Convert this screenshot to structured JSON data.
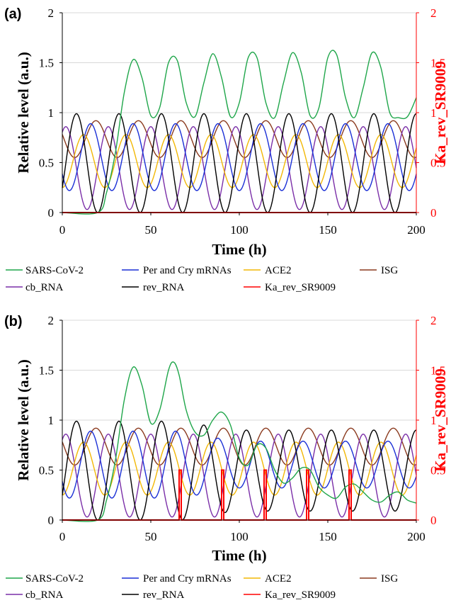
{
  "figure": {
    "panels": [
      "(a)",
      "(b)"
    ],
    "xlabel": "Time (h)",
    "ylabel": "Relative level (a.u.)",
    "y2label": "Ka_rev_SR9009"
  },
  "colors": {
    "SARS-CoV-2": "#1fa64a",
    "Per and Cry mRNAs": "#1a2fd6",
    "ACE2": "#f2b705",
    "ISG": "#8b3a1e",
    "cb_RNA": "#7a2ea8",
    "rev_RNA": "#000000",
    "Ka_rev_SR9009": "#ff0000",
    "right_axis": "#ff0000",
    "grid": "#d9d9d9"
  },
  "legend": [
    "SARS-CoV-2",
    "Per and Cry mRNAs",
    "ACE2",
    "ISG",
    "cb_RNA",
    "rev_RNA",
    "Ka_rev_SR9009"
  ],
  "chart_data": [
    {
      "type": "line",
      "panel": "(a)",
      "title": "",
      "xlabel": "Time (h)",
      "ylabel": "Relative level (a.u.)",
      "y2label": "Ka_rev_SR9009",
      "xlim": [
        0,
        200
      ],
      "ylim": [
        0,
        2
      ],
      "y2lim": [
        0,
        2
      ],
      "xticks": [
        0,
        50,
        100,
        150,
        200
      ],
      "yticks": [
        0,
        0.5,
        1,
        1.5,
        2
      ],
      "grid": true,
      "legend_position": "bottom",
      "series": [
        {
          "name": "SARS-CoV-2",
          "x": [
            0,
            20,
            25,
            30,
            35,
            40,
            45,
            50,
            55,
            60,
            65,
            70,
            75,
            80,
            85,
            90,
            95,
            100,
            105,
            110,
            115,
            120,
            125,
            130,
            135,
            140,
            145,
            150,
            155,
            160,
            165,
            170,
            175,
            180,
            185,
            190,
            195,
            200
          ],
          "values": [
            0,
            0,
            0.2,
            0.6,
            1.2,
            1.53,
            1.35,
            0.97,
            1.05,
            1.5,
            1.52,
            1.1,
            0.96,
            1.3,
            1.59,
            1.35,
            0.96,
            1.1,
            1.55,
            1.55,
            1.1,
            0.95,
            1.3,
            1.6,
            1.4,
            0.97,
            1.05,
            1.55,
            1.58,
            1.15,
            0.95,
            1.25,
            1.6,
            1.45,
            1.0,
            0.95,
            0.96,
            1.15
          ]
        },
        {
          "name": "Per and Cry mRNAs",
          "period": 24,
          "mean": 0.555,
          "amp": 0.335,
          "peak": 16
        },
        {
          "name": "ACE2",
          "period": 24,
          "mean": 0.515,
          "amp": 0.265,
          "peak": 12
        },
        {
          "name": "ISG",
          "period": 24,
          "mean": 0.735,
          "amp": 0.185,
          "peak": 19
        },
        {
          "name": "cb_RNA",
          "period": 24,
          "mean": 0.445,
          "amp": 0.415,
          "peak": 2
        },
        {
          "name": "rev_RNA",
          "period": 24,
          "mean": 0.495,
          "amp": 0.495,
          "peak": 8
        },
        {
          "name": "Ka_rev_SR9009",
          "axis": "right",
          "values": [
            0
          ]
        }
      ]
    },
    {
      "type": "line",
      "panel": "(b)",
      "title": "",
      "xlabel": "Time (h)",
      "ylabel": "Relative level (a.u.)",
      "y2label": "Ka_rev_SR9009",
      "xlim": [
        0,
        200
      ],
      "ylim": [
        0,
        2
      ],
      "y2lim": [
        0,
        2
      ],
      "xticks": [
        0,
        50,
        100,
        150,
        200
      ],
      "yticks": [
        0,
        0.5,
        1,
        1.5,
        2
      ],
      "grid": true,
      "legend_position": "bottom",
      "series": [
        {
          "name": "SARS-CoV-2",
          "x": [
            0,
            20,
            25,
            30,
            35,
            40,
            45,
            50,
            55,
            60,
            63,
            66,
            70,
            75,
            80,
            85,
            90,
            95,
            100,
            105,
            110,
            115,
            120,
            125,
            130,
            135,
            140,
            145,
            150,
            155,
            160,
            165,
            170,
            175,
            180,
            185,
            190,
            195,
            200
          ],
          "values": [
            0,
            0,
            0.2,
            0.6,
            1.2,
            1.53,
            1.35,
            0.97,
            1.1,
            1.5,
            1.58,
            1.45,
            1.1,
            0.88,
            0.85,
            1.0,
            1.08,
            0.95,
            0.62,
            0.55,
            0.75,
            0.72,
            0.5,
            0.37,
            0.42,
            0.52,
            0.5,
            0.33,
            0.25,
            0.22,
            0.33,
            0.36,
            0.28,
            0.2,
            0.18,
            0.25,
            0.28,
            0.2,
            0.17
          ]
        },
        {
          "name": "Per and Cry mRNAs",
          "period": 24,
          "mean": 0.555,
          "amp": 0.335,
          "peak": 16,
          "dampen_after": 67,
          "dampen_to": 0.7
        },
        {
          "name": "ACE2",
          "period": 24,
          "mean": 0.515,
          "amp": 0.265,
          "peak": 12
        },
        {
          "name": "ISG",
          "period": 24,
          "mean": 0.735,
          "amp": 0.185,
          "peak": 19
        },
        {
          "name": "cb_RNA",
          "period": 24,
          "mean": 0.445,
          "amp": 0.415,
          "peak": 2
        },
        {
          "name": "rev_RNA",
          "period": 24,
          "mean": 0.495,
          "amp": 0.495,
          "peak": 8,
          "dampen_after": 67,
          "dampen_to": 0.82
        },
        {
          "name": "Ka_rev_SR9009",
          "axis": "right",
          "pulses": [
            66,
            90,
            114,
            138,
            162
          ],
          "pulse_height": 0.5,
          "pulse_width": 1.2
        }
      ]
    }
  ]
}
